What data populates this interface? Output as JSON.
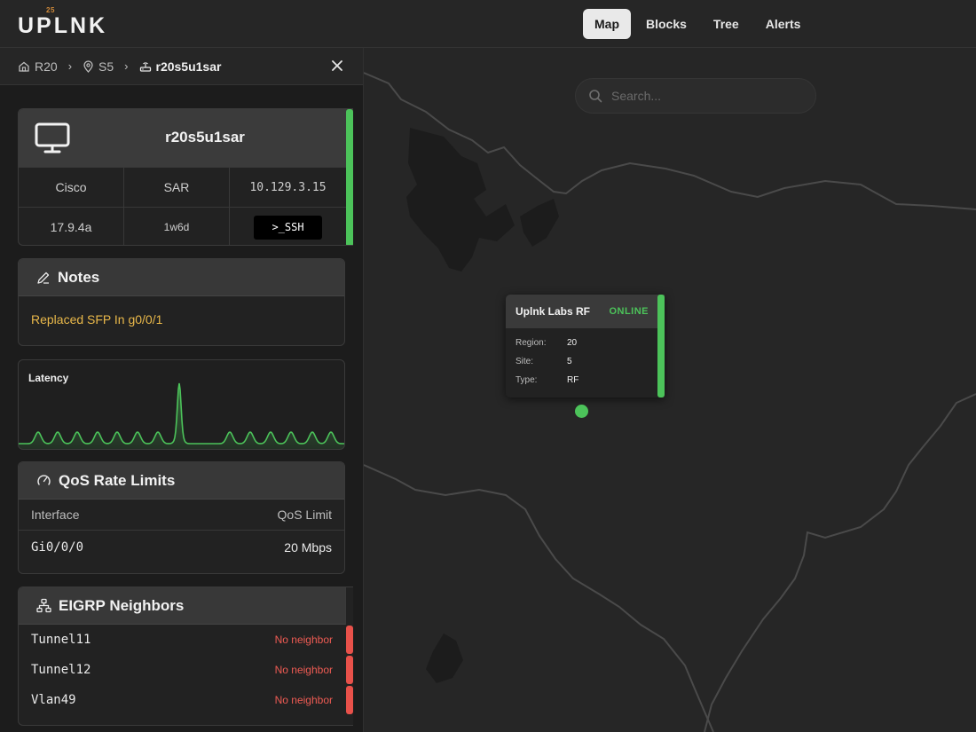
{
  "app": {
    "logo": "UPLNK",
    "logo_sup": "25"
  },
  "nav": {
    "items": [
      {
        "label": "Map"
      },
      {
        "label": "Blocks"
      },
      {
        "label": "Tree"
      },
      {
        "label": "Alerts"
      }
    ],
    "active": "Map"
  },
  "breadcrumb": {
    "region": "R20",
    "site": "S5",
    "device": "r20s5u1sar"
  },
  "device": {
    "name": "r20s5u1sar",
    "vendor": "Cisco",
    "role": "SAR",
    "ip": "10.129.3.15",
    "version": "17.9.4a",
    "uptime": "1w6d",
    "ssh_label": ">_SSH",
    "status_color": "#4cc35a"
  },
  "notes": {
    "title": "Notes",
    "text": "Replaced SFP In g0/0/1"
  },
  "latency": {
    "title": "Latency",
    "line_color": "#4cc35a"
  },
  "qos": {
    "title": "QoS Rate Limits",
    "columns": [
      "Interface",
      "QoS Limit"
    ],
    "rows": [
      {
        "interface": "Gi0/0/0",
        "limit": "20 Mbps"
      }
    ]
  },
  "eigrp": {
    "title": "EIGRP Neighbors",
    "rows": [
      {
        "interface": "Tunnel11",
        "status": "No neighbor"
      },
      {
        "interface": "Tunnel12",
        "status": "No neighbor"
      },
      {
        "interface": "Vlan49",
        "status": "No neighbor"
      }
    ],
    "status_color": "#e8514a"
  },
  "map": {
    "search_placeholder": "Search...",
    "popup": {
      "title": "Uplnk Labs RF",
      "status": "ONLINE",
      "fields": [
        {
          "label": "Region:",
          "value": "20"
        },
        {
          "label": "Site:",
          "value": "5"
        },
        {
          "label": "Type:",
          "value": "RF"
        }
      ]
    }
  }
}
